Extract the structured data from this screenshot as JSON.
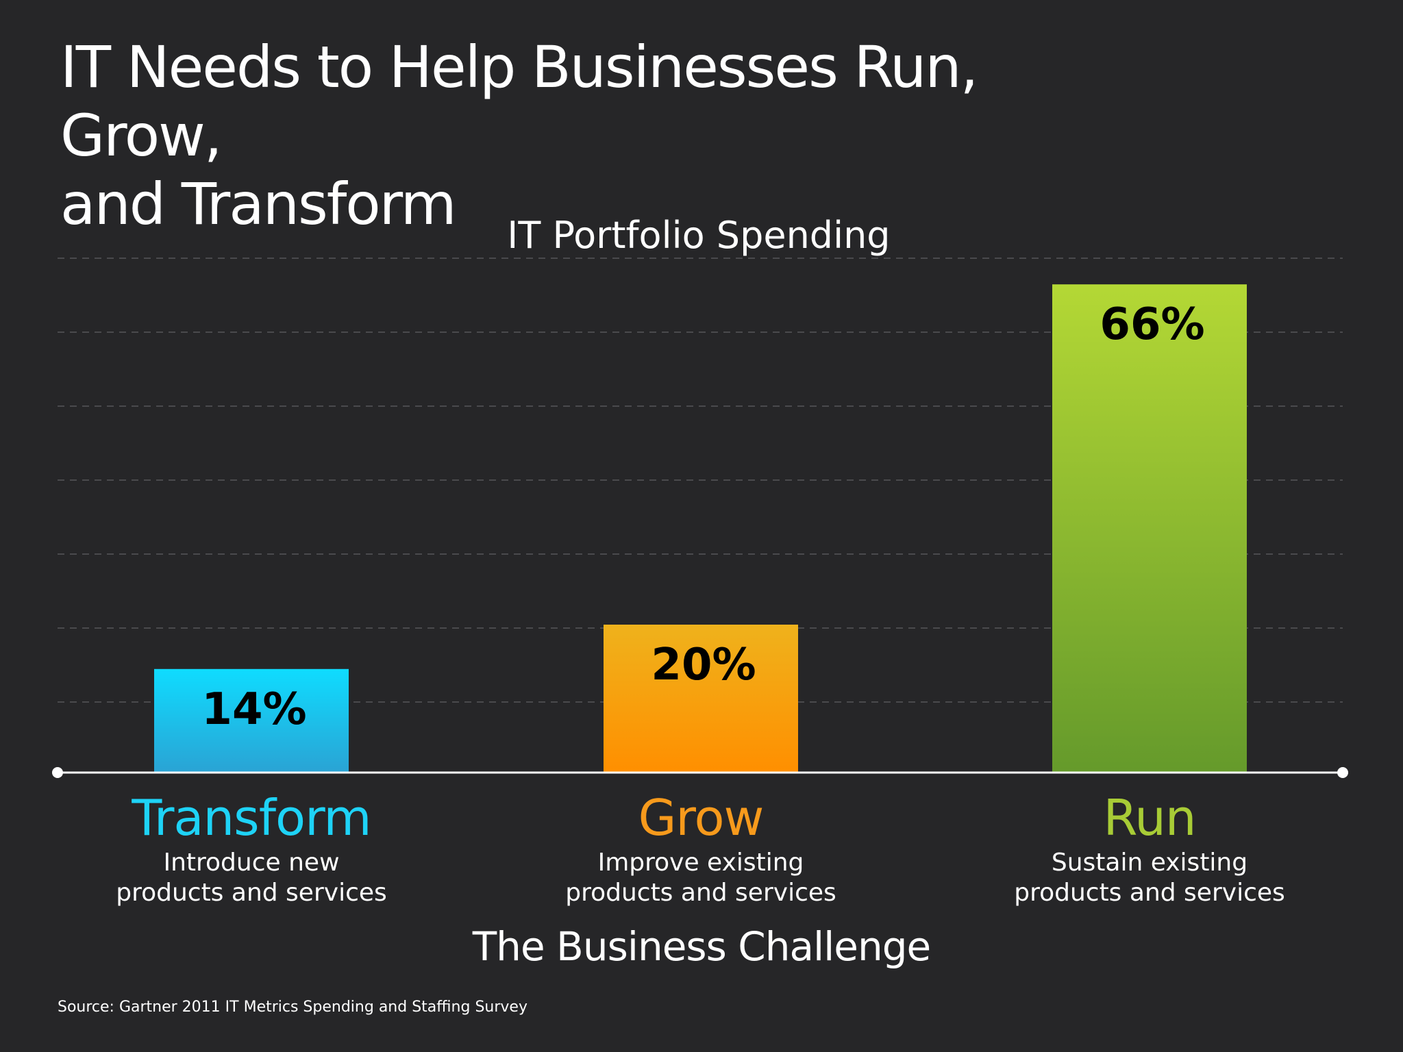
{
  "slide": {
    "title_line1": "IT Needs to Help Businesses Run, Grow,",
    "title_line2": "and Transform",
    "source": "Source: Gartner 2011 IT Metrics Spending and Staffing Survey"
  },
  "chart_data": {
    "type": "bar",
    "title": "IT Portfolio Spending",
    "xlabel": "The Business Challenge",
    "ylabel": "",
    "ylim": [
      0,
      70
    ],
    "grid": true,
    "unit": "%",
    "categories": [
      "Transform",
      "Grow",
      "Run"
    ],
    "descriptions": [
      [
        "Introduce new",
        "products and services"
      ],
      [
        "Improve existing",
        "products and services"
      ],
      [
        "Sustain existing",
        "products and services"
      ]
    ],
    "values": [
      14,
      20,
      66
    ],
    "data_labels": [
      "14%",
      "20%",
      "66%"
    ],
    "colors": {
      "Transform": "#1ed3f7",
      "Grow": "#f79a1c",
      "Run": "#a8cc36"
    }
  }
}
